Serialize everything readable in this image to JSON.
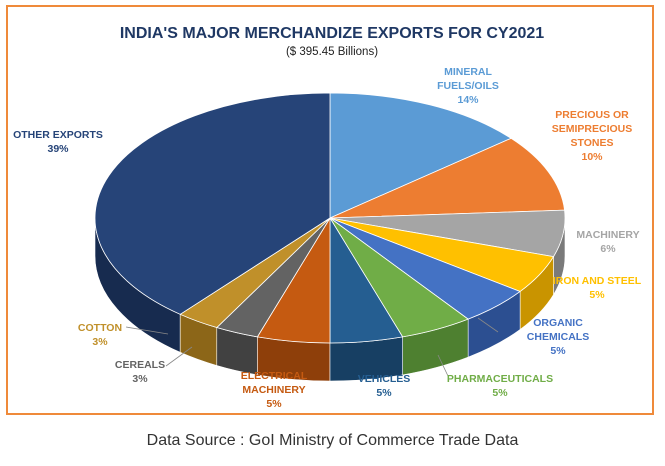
{
  "chart_data": {
    "type": "pie",
    "title": "INDIA'S MAJOR MERCHANDIZE EXPORTS FOR CY2021",
    "subtitle": "($ 395.45 Billions)",
    "slices": [
      {
        "lines": [
          "MINERAL",
          "FUELS/OILS"
        ],
        "pct_label": "14%",
        "value": 14,
        "color": "#5b9bd5",
        "side": "#3f78ad"
      },
      {
        "lines": [
          "PRECIOUS OR",
          "SEMIPRECIOUS",
          "STONES"
        ],
        "pct_label": "10%",
        "value": 10,
        "color": "#ed7d31",
        "side": "#b85a1a"
      },
      {
        "lines": [
          "MACHINERY"
        ],
        "pct_label": "6%",
        "value": 6,
        "color": "#a5a5a5",
        "side": "#7a7a7a"
      },
      {
        "lines": [
          "IRON AND STEEL"
        ],
        "pct_label": "5%",
        "value": 5,
        "color": "#ffc000",
        "side": "#c99400"
      },
      {
        "lines": [
          "ORGANIC",
          "CHEMICALS"
        ],
        "pct_label": "5%",
        "value": 5,
        "color": "#4472c4",
        "side": "#2c4f91"
      },
      {
        "lines": [
          "PHARMACEUTICALS"
        ],
        "pct_label": "5%",
        "value": 5,
        "color": "#70ad47",
        "side": "#4e8030"
      },
      {
        "lines": [
          "VEHICLES"
        ],
        "pct_label": "5%",
        "value": 5,
        "color": "#255e91",
        "side": "#173f63"
      },
      {
        "lines": [
          "ELECTRICAL",
          "MACHINERY"
        ],
        "pct_label": "5%",
        "value": 5,
        "color": "#c55a11",
        "side": "#8e3f0a"
      },
      {
        "lines": [
          "CEREALS"
        ],
        "pct_label": "3%",
        "value": 3,
        "color": "#636363",
        "side": "#414141"
      },
      {
        "lines": [
          "COTTON"
        ],
        "pct_label": "3%",
        "value": 3,
        "color": "#c0902a",
        "side": "#8c6618"
      },
      {
        "lines": [
          "OTHER EXPORTS"
        ],
        "pct_label": "39%",
        "value": 39,
        "color": "#264478",
        "side": "#172b4f"
      }
    ]
  },
  "source": "Data Source : GoI Ministry of Commerce Trade Data"
}
